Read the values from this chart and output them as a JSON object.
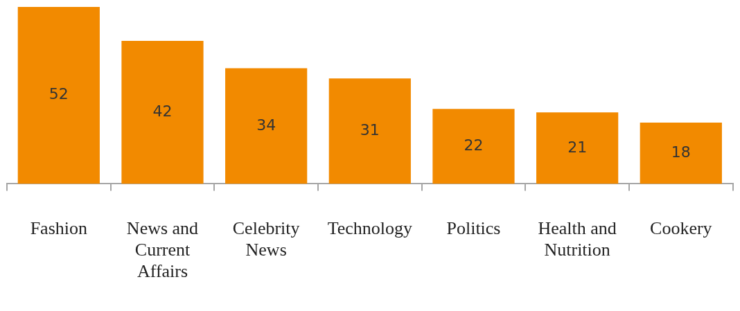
{
  "chart_data": {
    "type": "bar",
    "categories": [
      "Fashion",
      "News and Current Affairs",
      "Celebrity News",
      "Technology",
      "Politics",
      "Health and Nutrition",
      "Cookery"
    ],
    "values": [
      52,
      42,
      34,
      31,
      22,
      21,
      18
    ],
    "color": "#f28a00",
    "data_labels": true,
    "grid": false,
    "legend": false,
    "tick_labels": "x"
  }
}
